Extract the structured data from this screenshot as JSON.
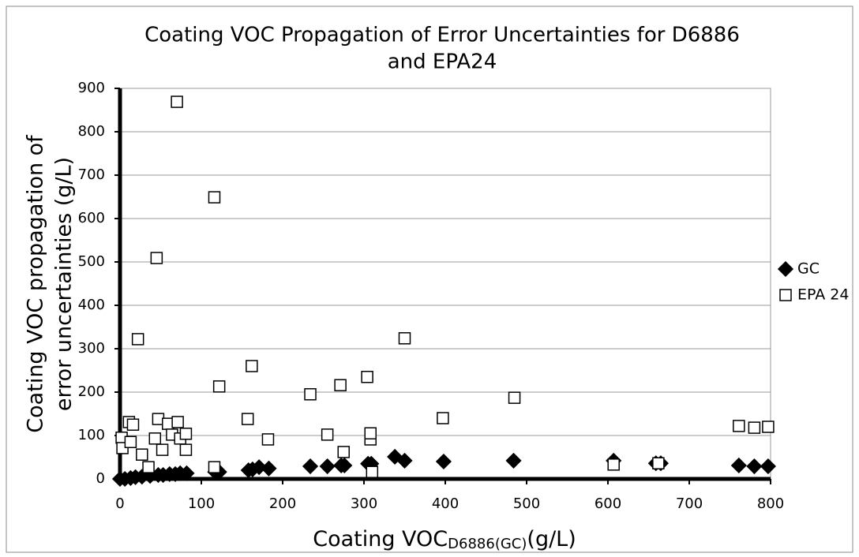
{
  "chart_data": {
    "type": "scatter",
    "title": [
      "Coating VOC Propagation of Error Uncertainties for D6886",
      "and EPA24"
    ],
    "x_label": "Coating VOC",
    "x_label_sub": "D6886(GC)",
    "x_label_unit": "(g/L)",
    "y_label": [
      "Coating VOC propagation of",
      "error uncertainties (g/L)"
    ],
    "xlim": [
      0,
      800
    ],
    "xticks": [
      0,
      100,
      200,
      300,
      400,
      500,
      600,
      700,
      800
    ],
    "ylim": [
      0,
      900
    ],
    "yticks": [
      0,
      100,
      200,
      300,
      400,
      500,
      600,
      700,
      800,
      900
    ],
    "grid": true,
    "legend": "right",
    "series": [
      {
        "name": "GC",
        "color": "#000000",
        "marker": "diamond",
        "filled": true,
        "x": [
          0,
          6,
          13,
          19,
          27,
          37,
          47,
          53,
          61,
          68,
          74,
          82,
          117,
          122,
          158,
          163,
          171,
          183,
          234,
          255,
          272,
          276,
          305,
          309,
          338,
          350,
          398,
          484,
          607,
          659,
          665,
          761,
          780,
          797
        ],
        "values": [
          0,
          0,
          2,
          4,
          5,
          7,
          9,
          9,
          11,
          11,
          13,
          13,
          16,
          16,
          20,
          22,
          27,
          24,
          29,
          29,
          31,
          31,
          35,
          35,
          51,
          42,
          40,
          42,
          42,
          36,
          36,
          31,
          29,
          29
        ]
      },
      {
        "name": "EPA 24",
        "color": "#000000",
        "marker": "square",
        "filled": false,
        "x": [
          2,
          3,
          11,
          16,
          13,
          22,
          27,
          35,
          43,
          45,
          47,
          52,
          59,
          64,
          70,
          71,
          74,
          81,
          81,
          116,
          116,
          122,
          157,
          162,
          182,
          234,
          255,
          271,
          275,
          304,
          308,
          308,
          310,
          350,
          397,
          485,
          607,
          662,
          761,
          780,
          797
        ],
        "values": [
          95,
          71,
          131,
          125,
          85,
          322,
          56,
          27,
          93,
          509,
          138,
          67,
          127,
          102,
          869,
          131,
          93,
          104,
          67,
          27,
          649,
          213,
          138,
          260,
          91,
          195,
          102,
          216,
          62,
          235,
          91,
          105,
          16,
          324,
          140,
          187,
          33,
          36,
          122,
          118,
          120
        ]
      }
    ]
  }
}
